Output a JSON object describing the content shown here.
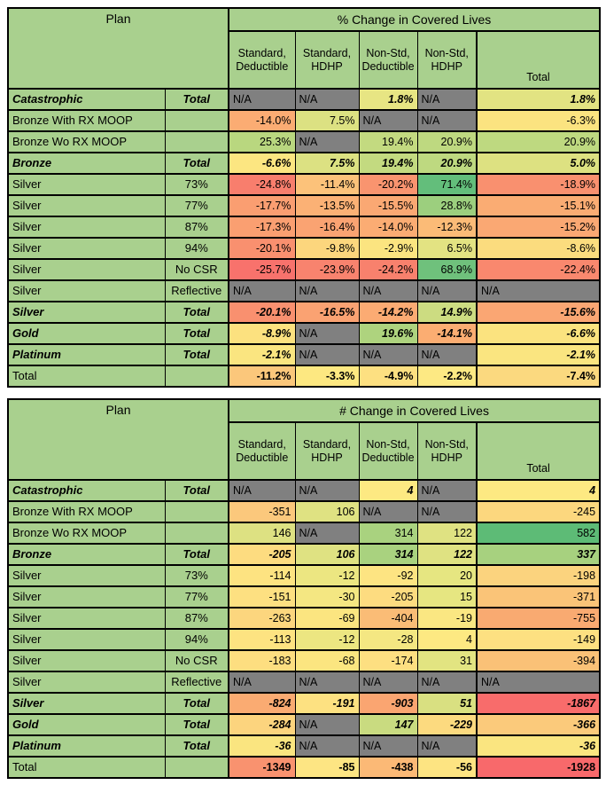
{
  "palette": {
    "cell_green": "#A9D08E",
    "na_gray": "#808080",
    "grid_black": "#000000",
    "page_bg": "#FFFFFF",
    "scale_red": "#F8696B",
    "scale_yellow": "#FFEB84",
    "scale_green": "#63BE7B"
  },
  "na_label": "N/A",
  "chart_data": [
    {
      "type": "table",
      "title": "% Change in Covered Lives",
      "plan_header": "Plan",
      "columns": [
        "Standard,\nDeductible",
        "Standard,\nHDHP",
        "Non-Std,\nDeductible",
        "Non-Std,\nHDHP",
        "Total"
      ],
      "rows": [
        {
          "plan": "Catastrophic",
          "sub": "Total",
          "style": "group",
          "cells": [
            {
              "v": "N/A",
              "bg": "#808080"
            },
            {
              "v": "N/A",
              "bg": "#808080"
            },
            {
              "v": "1.8%",
              "bg": "#E7E583"
            },
            {
              "v": "N/A",
              "bg": "#808080"
            },
            {
              "v": "1.8%",
              "bg": "#E2E382"
            }
          ]
        },
        {
          "plan": "Bronze With RX MOOP",
          "sub": "",
          "style": "normal",
          "cells": [
            {
              "v": "-14.0%",
              "bg": "#FBAC73"
            },
            {
              "v": "7.5%",
              "bg": "#DCE182"
            },
            {
              "v": "N/A",
              "bg": "#808080"
            },
            {
              "v": "N/A",
              "bg": "#808080"
            },
            {
              "v": "-6.3%",
              "bg": "#FBE380"
            }
          ]
        },
        {
          "plan": "Bronze Wo RX MOOP",
          "sub": "",
          "style": "normal",
          "cells": [
            {
              "v": "25.3%",
              "bg": "#B9D77F"
            },
            {
              "v": "N/A",
              "bg": "#808080"
            },
            {
              "v": "19.4%",
              "bg": "#C3DA80"
            },
            {
              "v": "20.9%",
              "bg": "#BED980"
            },
            {
              "v": "20.9%",
              "bg": "#BED980"
            }
          ]
        },
        {
          "plan": "Bronze",
          "sub": "Total",
          "style": "group",
          "cells": [
            {
              "v": "-6.6%",
              "bg": "#FCE681"
            },
            {
              "v": "7.5%",
              "bg": "#DCE182"
            },
            {
              "v": "19.4%",
              "bg": "#C3DA80"
            },
            {
              "v": "20.9%",
              "bg": "#BED980"
            },
            {
              "v": "5.0%",
              "bg": "#DDE181"
            }
          ]
        },
        {
          "plan": "Silver",
          "sub": "73%",
          "style": "normal",
          "cells": [
            {
              "v": "-24.8%",
              "bg": "#F87E6D"
            },
            {
              "v": "-11.4%",
              "bg": "#FCC27A"
            },
            {
              "v": "-20.2%",
              "bg": "#F9946F"
            },
            {
              "v": "71.4%",
              "bg": "#63BE7B"
            },
            {
              "v": "-18.9%",
              "bg": "#F9906F"
            }
          ]
        },
        {
          "plan": "Silver",
          "sub": "77%",
          "style": "normal",
          "cells": [
            {
              "v": "-17.7%",
              "bg": "#FA9E71"
            },
            {
              "v": "-13.5%",
              "bg": "#FBB175"
            },
            {
              "v": "-15.5%",
              "bg": "#FAA873"
            },
            {
              "v": "28.8%",
              "bg": "#9CCF7E"
            },
            {
              "v": "-15.1%",
              "bg": "#FAAC73"
            }
          ]
        },
        {
          "plan": "Silver",
          "sub": "87%",
          "style": "normal",
          "cells": [
            {
              "v": "-17.3%",
              "bg": "#FA9F71"
            },
            {
              "v": "-16.4%",
              "bg": "#FAA372"
            },
            {
              "v": "-14.0%",
              "bg": "#FBAC73"
            },
            {
              "v": "-12.3%",
              "bg": "#FBBB77"
            },
            {
              "v": "-15.2%",
              "bg": "#FAA873"
            }
          ]
        },
        {
          "plan": "Silver",
          "sub": "94%",
          "style": "normal",
          "cells": [
            {
              "v": "-20.1%",
              "bg": "#F9906F"
            },
            {
              "v": "-9.8%",
              "bg": "#FCD67D"
            },
            {
              "v": "-2.9%",
              "bg": "#FBE480"
            },
            {
              "v": "6.5%",
              "bg": "#E3E382"
            },
            {
              "v": "-8.6%",
              "bg": "#FBDC7E"
            }
          ]
        },
        {
          "plan": "Silver",
          "sub": "No CSR",
          "style": "normal",
          "cells": [
            {
              "v": "-25.7%",
              "bg": "#F8726C"
            },
            {
              "v": "-23.9%",
              "bg": "#F8836E"
            },
            {
              "v": "-24.2%",
              "bg": "#F8816D"
            },
            {
              "v": "68.9%",
              "bg": "#6FC17C"
            },
            {
              "v": "-22.4%",
              "bg": "#F9886E"
            }
          ]
        },
        {
          "plan": "Silver",
          "sub": "Reflective",
          "style": "normal",
          "cells": [
            {
              "v": "N/A",
              "bg": "#808080"
            },
            {
              "v": "N/A",
              "bg": "#808080"
            },
            {
              "v": "N/A",
              "bg": "#808080"
            },
            {
              "v": "N/A",
              "bg": "#808080"
            },
            {
              "v": "N/A",
              "bg": "#808080"
            }
          ]
        },
        {
          "plan": "Silver",
          "sub": "Total",
          "style": "group",
          "cells": [
            {
              "v": "-20.1%",
              "bg": "#F9906F"
            },
            {
              "v": "-16.5%",
              "bg": "#FAA272"
            },
            {
              "v": "-14.2%",
              "bg": "#FBAB73"
            },
            {
              "v": "14.9%",
              "bg": "#CCDC81"
            },
            {
              "v": "-15.6%",
              "bg": "#FAA673"
            }
          ]
        },
        {
          "plan": "Gold",
          "sub": "Total",
          "style": "group",
          "cells": [
            {
              "v": "-8.9%",
              "bg": "#FCE17F"
            },
            {
              "v": "N/A",
              "bg": "#808080"
            },
            {
              "v": "19.6%",
              "bg": "#AED37E"
            },
            {
              "v": "-14.1%",
              "bg": "#FBAD72"
            },
            {
              "v": "-6.6%",
              "bg": "#FBE37F"
            }
          ]
        },
        {
          "plan": "Platinum",
          "sub": "Total",
          "style": "group",
          "cells": [
            {
              "v": "-2.1%",
              "bg": "#FAE580"
            },
            {
              "v": "N/A",
              "bg": "#808080"
            },
            {
              "v": "N/A",
              "bg": "#808080"
            },
            {
              "v": "N/A",
              "bg": "#808080"
            },
            {
              "v": "-2.1%",
              "bg": "#FAE580"
            }
          ]
        },
        {
          "plan": "Total",
          "sub": "",
          "style": "grand",
          "cells": [
            {
              "v": "-11.2%",
              "bg": "#FBC77B"
            },
            {
              "v": "-3.3%",
              "bg": "#FDE881"
            },
            {
              "v": "-4.9%",
              "bg": "#FDE081"
            },
            {
              "v": "-2.2%",
              "bg": "#FDE983"
            },
            {
              "v": "-7.4%",
              "bg": "#FBD97F"
            }
          ]
        }
      ]
    },
    {
      "type": "table",
      "title": "# Change in Covered Lives",
      "plan_header": "Plan",
      "columns": [
        "Standard,\nDeductible",
        "Standard,\nHDHP",
        "Non-Std,\nDeductible",
        "Non-Std,\nHDHP",
        "Total"
      ],
      "rows": [
        {
          "plan": "Catastrophic",
          "sub": "Total",
          "style": "group",
          "cells": [
            {
              "v": "N/A",
              "bg": "#808080"
            },
            {
              "v": "N/A",
              "bg": "#808080"
            },
            {
              "v": "4",
              "bg": "#FDE982"
            },
            {
              "v": "N/A",
              "bg": "#808080"
            },
            {
              "v": "4",
              "bg": "#FDE982"
            }
          ]
        },
        {
          "plan": "Bronze With RX MOOP",
          "sub": "",
          "style": "normal",
          "cells": [
            {
              "v": "-351",
              "bg": "#FBC87C"
            },
            {
              "v": "106",
              "bg": "#DFE282"
            },
            {
              "v": "N/A",
              "bg": "#808080"
            },
            {
              "v": "N/A",
              "bg": "#808080"
            },
            {
              "v": "-245",
              "bg": "#FCD77E"
            }
          ]
        },
        {
          "plan": "Bronze Wo RX MOOP",
          "sub": "",
          "style": "normal",
          "cells": [
            {
              "v": "146",
              "bg": "#DDE182"
            },
            {
              "v": "N/A",
              "bg": "#808080"
            },
            {
              "v": "314",
              "bg": "#A9D27F"
            },
            {
              "v": "122",
              "bg": "#DFE282"
            },
            {
              "v": "582",
              "bg": "#5DBB76"
            }
          ]
        },
        {
          "plan": "Bronze",
          "sub": "Total",
          "style": "group",
          "cells": [
            {
              "v": "-205",
              "bg": "#FDDC80"
            },
            {
              "v": "106",
              "bg": "#DFE282"
            },
            {
              "v": "314",
              "bg": "#A9D27F"
            },
            {
              "v": "122",
              "bg": "#DFE282"
            },
            {
              "v": "337",
              "bg": "#A7D17F"
            }
          ]
        },
        {
          "plan": "Silver",
          "sub": "73%",
          "style": "normal",
          "cells": [
            {
              "v": "-114",
              "bg": "#FDE381"
            },
            {
              "v": "-12",
              "bg": "#ECE681"
            },
            {
              "v": "-92",
              "bg": "#FDE482"
            },
            {
              "v": "20",
              "bg": "#E6E681"
            },
            {
              "v": "-198",
              "bg": "#FBD37E"
            }
          ]
        },
        {
          "plan": "Silver",
          "sub": "77%",
          "style": "normal",
          "cells": [
            {
              "v": "-151",
              "bg": "#FDE081"
            },
            {
              "v": "-30",
              "bg": "#F4E782"
            },
            {
              "v": "-205",
              "bg": "#FDDC80"
            },
            {
              "v": "15",
              "bg": "#E6E681"
            },
            {
              "v": "-371",
              "bg": "#FAC478"
            }
          ]
        },
        {
          "plan": "Silver",
          "sub": "87%",
          "style": "normal",
          "cells": [
            {
              "v": "-263",
              "bg": "#FCD67E"
            },
            {
              "v": "-69",
              "bg": "#FBE580"
            },
            {
              "v": "-404",
              "bg": "#FABC76"
            },
            {
              "v": "-19",
              "bg": "#FAE782"
            },
            {
              "v": "-755",
              "bg": "#F9AA71"
            }
          ]
        },
        {
          "plan": "Silver",
          "sub": "94%",
          "style": "normal",
          "cells": [
            {
              "v": "-113",
              "bg": "#FDE381"
            },
            {
              "v": "-12",
              "bg": "#ECE681"
            },
            {
              "v": "-28",
              "bg": "#F4E782"
            },
            {
              "v": "4",
              "bg": "#FDE982"
            },
            {
              "v": "-149",
              "bg": "#FDE081"
            }
          ]
        },
        {
          "plan": "Silver",
          "sub": "No CSR",
          "style": "normal",
          "cells": [
            {
              "v": "-183",
              "bg": "#FDDE80"
            },
            {
              "v": "-68",
              "bg": "#FBE580"
            },
            {
              "v": "-174",
              "bg": "#FDDF81"
            },
            {
              "v": "31",
              "bg": "#E2E481"
            },
            {
              "v": "-394",
              "bg": "#FAC177"
            }
          ]
        },
        {
          "plan": "Silver",
          "sub": "Reflective",
          "style": "normal",
          "cells": [
            {
              "v": "N/A",
              "bg": "#808080"
            },
            {
              "v": "N/A",
              "bg": "#808080"
            },
            {
              "v": "N/A",
              "bg": "#808080"
            },
            {
              "v": "N/A",
              "bg": "#808080"
            },
            {
              "v": "N/A",
              "bg": "#808080"
            }
          ]
        },
        {
          "plan": "Silver",
          "sub": "Total",
          "style": "group",
          "cells": [
            {
              "v": "-824",
              "bg": "#FAAB72"
            },
            {
              "v": "-191",
              "bg": "#FDE181"
            },
            {
              "v": "-903",
              "bg": "#FAA571"
            },
            {
              "v": "51",
              "bg": "#D9E081"
            },
            {
              "v": "-1867",
              "bg": "#F86C6B"
            }
          ]
        },
        {
          "plan": "Gold",
          "sub": "Total",
          "style": "group",
          "cells": [
            {
              "v": "-284",
              "bg": "#FCD47E"
            },
            {
              "v": "N/A",
              "bg": "#808080"
            },
            {
              "v": "147",
              "bg": "#C9DB80"
            },
            {
              "v": "-229",
              "bg": "#FCDA7F"
            },
            {
              "v": "-366",
              "bg": "#FBCA7B"
            }
          ]
        },
        {
          "plan": "Platinum",
          "sub": "Total",
          "style": "group",
          "cells": [
            {
              "v": "-36",
              "bg": "#FAE580"
            },
            {
              "v": "N/A",
              "bg": "#808080"
            },
            {
              "v": "N/A",
              "bg": "#808080"
            },
            {
              "v": "N/A",
              "bg": "#808080"
            },
            {
              "v": "-36",
              "bg": "#FAE580"
            }
          ]
        },
        {
          "plan": "Total",
          "sub": "",
          "style": "grand",
          "cells": [
            {
              "v": "-1349",
              "bg": "#F9926F"
            },
            {
              "v": "-85",
              "bg": "#FDE583"
            },
            {
              "v": "-438",
              "bg": "#FBB976"
            },
            {
              "v": "-56",
              "bg": "#FDE482"
            },
            {
              "v": "-1928",
              "bg": "#F8696B"
            }
          ]
        }
      ]
    }
  ]
}
